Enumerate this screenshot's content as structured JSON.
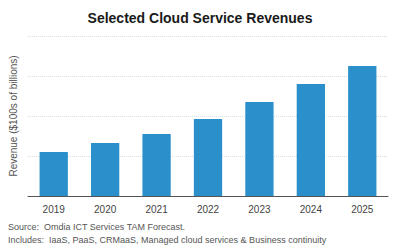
{
  "chart_data": {
    "type": "bar",
    "title": "Selected Cloud Service Revenues",
    "categories": [
      "2019",
      "2020",
      "2021",
      "2022",
      "2023",
      "2024",
      "2025"
    ],
    "values": [
      2.2,
      2.65,
      3.1,
      3.85,
      4.7,
      5.6,
      6.5
    ],
    "color": "#2A8FCA",
    "ylabel": "Revenue ($100s of billions)",
    "ylim": [
      0,
      8.0
    ],
    "yticks": [
      0,
      2,
      4,
      6,
      8
    ],
    "grid": true,
    "tick_labels": "x",
    "annotations": [
      "Source:  Omdia ICT Services TAM Forecast.",
      "Includes:  IaaS, PaaS, CRMaaS, Managed cloud services & Business continuity"
    ]
  }
}
